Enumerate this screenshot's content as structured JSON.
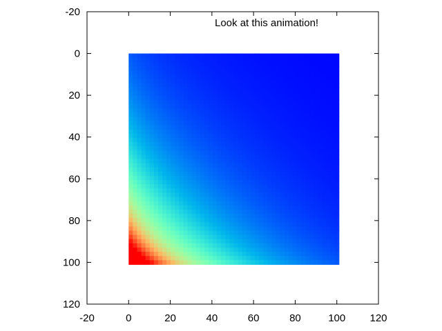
{
  "chart_data": {
    "type": "heatmap",
    "title": "",
    "xlabel": "",
    "ylabel": "",
    "xlim": [
      -20,
      120
    ],
    "ylim": [
      -20,
      120
    ],
    "y_axis_inverted": true,
    "x_ticks": [
      "-20",
      "0",
      "20",
      "40",
      "60",
      "80",
      "100",
      "120"
    ],
    "y_ticks": [
      "-20",
      "0",
      "20",
      "40",
      "60",
      "80",
      "100",
      "120"
    ],
    "data_extent": {
      "x": [
        0,
        101
      ],
      "y": [
        0,
        101
      ]
    },
    "grid": false,
    "colormap": "rainbow",
    "color_max_location": "bottom-left corner (x=0, y=101)",
    "color_min_location": "top-right region",
    "annotation": "Look at this animation!"
  }
}
